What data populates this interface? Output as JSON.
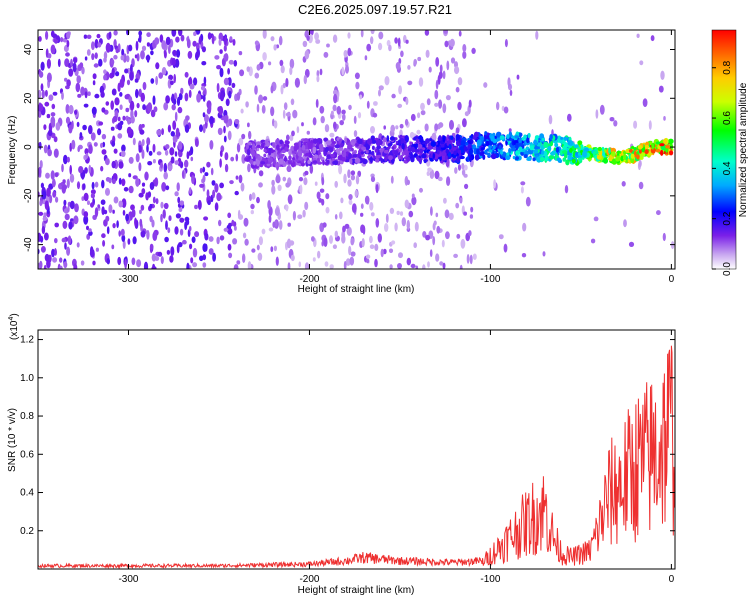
{
  "title": "C2E6.2025.097.19.57.R21",
  "colors": {
    "signal": "#ee3030",
    "background": "#ffffff"
  },
  "chart_data": [
    {
      "type": "heatmap",
      "xlabel": "Height of straight line (km)",
      "ylabel": "Frequency (Hz)",
      "xlim": [
        -350,
        2
      ],
      "ylim": [
        -50,
        48
      ],
      "x_ticks": [
        -300,
        -200,
        -100,
        0
      ],
      "x_tick_labels": [
        "-300",
        "-200",
        "-100",
        "0"
      ],
      "y_ticks": [
        -40,
        -20,
        0,
        20,
        40
      ],
      "y_tick_labels": [
        "-40",
        "-20",
        "0",
        "20",
        "40"
      ],
      "colorbar": {
        "label": "Normalized spectral amplitude",
        "range": [
          0,
          0.95
        ],
        "ticks": [
          0.0,
          0.2,
          0.4,
          0.6,
          0.8
        ],
        "tick_labels": [
          "0.0",
          "0.2",
          "0.4",
          "0.6",
          "0.8"
        ]
      },
      "ridge": {
        "x": [
          -235,
          -200,
          -150,
          -120,
          -100,
          -80,
          -60,
          -40,
          -30,
          -20,
          -10,
          0
        ],
        "freq_hz": [
          -3,
          -2,
          -1,
          -1,
          1,
          0,
          -1,
          -3,
          -4,
          -3,
          0,
          0
        ],
        "amplitude": [
          0.15,
          0.15,
          0.2,
          0.25,
          0.35,
          0.45,
          0.5,
          0.7,
          0.85,
          0.85,
          0.95,
          0.95
        ]
      }
    },
    {
      "type": "line",
      "xlabel": "Height of straight line (km)",
      "ylabel": "SNR (10 * v/v)",
      "y_multiplier": "(x10",
      "y_multiplier_exp": "4",
      "y_multiplier_close": ")",
      "xlim": [
        -350,
        2
      ],
      "ylim": [
        0,
        1.25
      ],
      "x_ticks": [
        -300,
        -200,
        -100,
        0
      ],
      "x_tick_labels": [
        "-300",
        "-200",
        "-100",
        "0"
      ],
      "y_ticks": [
        0.2,
        0.4,
        0.6,
        0.8,
        1.0,
        1.2
      ],
      "y_tick_labels": [
        "0.2",
        "0.4",
        "0.6",
        "0.8",
        "1.0",
        "1.2"
      ],
      "series": [
        {
          "x": [
            -350,
            -300,
            -250,
            -200,
            -180,
            -170,
            -150,
            -120,
            -105,
            -95,
            -85,
            -75,
            -70,
            -65,
            -60,
            -55,
            -45,
            -40,
            -35,
            -25,
            -20,
            -15,
            -10,
            -5,
            0,
            2
          ],
          "y": [
            0.02,
            0.02,
            0.02,
            0.03,
            0.05,
            0.07,
            0.05,
            0.04,
            0.05,
            0.18,
            0.32,
            0.45,
            0.5,
            0.25,
            0.12,
            0.1,
            0.15,
            0.35,
            0.6,
            0.75,
            0.85,
            0.9,
            0.95,
            1.05,
            1.2,
            0.95
          ]
        }
      ]
    }
  ]
}
